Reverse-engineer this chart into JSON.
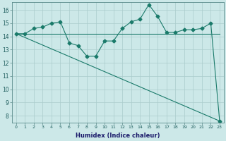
{
  "xlabel": "Humidex (Indice chaleur)",
  "x": [
    0,
    1,
    2,
    3,
    4,
    5,
    6,
    7,
    8,
    9,
    10,
    11,
    12,
    13,
    14,
    15,
    16,
    17,
    18,
    19,
    20,
    21,
    22,
    23
  ],
  "line1_y": [
    14.2,
    14.2,
    14.6,
    14.7,
    15.0,
    15.1,
    13.5,
    13.3,
    12.5,
    12.5,
    13.65,
    13.65,
    14.6,
    15.1,
    15.3,
    16.4,
    15.5,
    14.3,
    14.3,
    14.5,
    14.5,
    14.6,
    15.0,
    7.6
  ],
  "line2_x": [
    0,
    1,
    2,
    3,
    4,
    5,
    6,
    7,
    8,
    9,
    10,
    11,
    12,
    13,
    14,
    15,
    16,
    17,
    18,
    19,
    20,
    21,
    22,
    23
  ],
  "line2_y": [
    14.2,
    14.2,
    14.2,
    14.2,
    14.2,
    14.2,
    14.2,
    14.2,
    14.2,
    14.2,
    14.2,
    14.2,
    14.2,
    14.2,
    14.2,
    14.2,
    14.2,
    14.2,
    14.2,
    14.2,
    14.2,
    14.2,
    14.2,
    14.2
  ],
  "line3_x": [
    0,
    23
  ],
  "line3_y": [
    14.2,
    7.6
  ],
  "line_color": "#1a7a6a",
  "bg_color": "#cce8e8",
  "grid_color": "#aacccc",
  "ylim": [
    7.5,
    16.6
  ],
  "yticks": [
    8,
    9,
    10,
    11,
    12,
    13,
    14,
    15,
    16
  ],
  "xticks": [
    0,
    1,
    2,
    3,
    4,
    5,
    6,
    7,
    8,
    9,
    10,
    11,
    12,
    13,
    14,
    15,
    16,
    17,
    18,
    19,
    20,
    21,
    22,
    23
  ],
  "xlabel_color": "#1a1a6a",
  "marker": "D",
  "markersize": 2.5
}
